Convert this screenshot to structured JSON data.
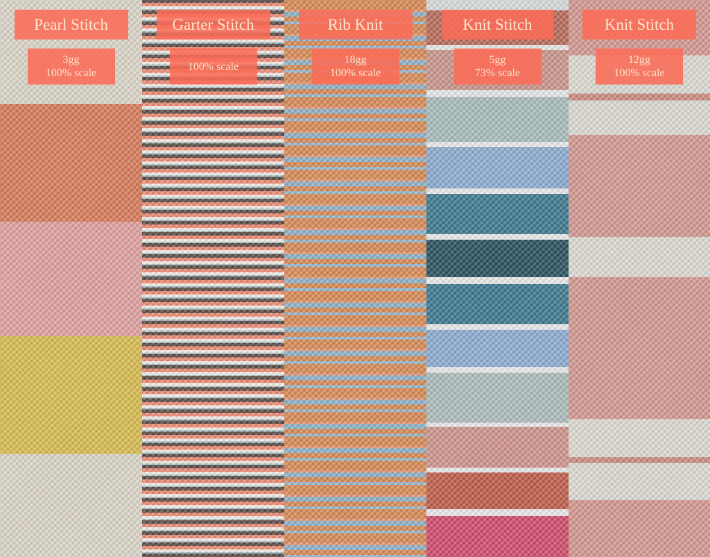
{
  "panels": [
    {
      "title": "Pearl Stitch",
      "gauge": "3gg",
      "scale": "100% scale"
    },
    {
      "title": "Garter Stitch",
      "scale": "100% scale"
    },
    {
      "title": "Rib Knit",
      "gauge": "18gg",
      "scale": "100% scale"
    },
    {
      "title": "Knit Stitch",
      "gauge": "5gg",
      "scale": "73% scale"
    },
    {
      "title": "Knit Stitch",
      "gauge": "12gg",
      "scale": "100% scale"
    }
  ],
  "colors": {
    "label_bg": "#fa6c58",
    "label_text": "#fde6cc"
  }
}
